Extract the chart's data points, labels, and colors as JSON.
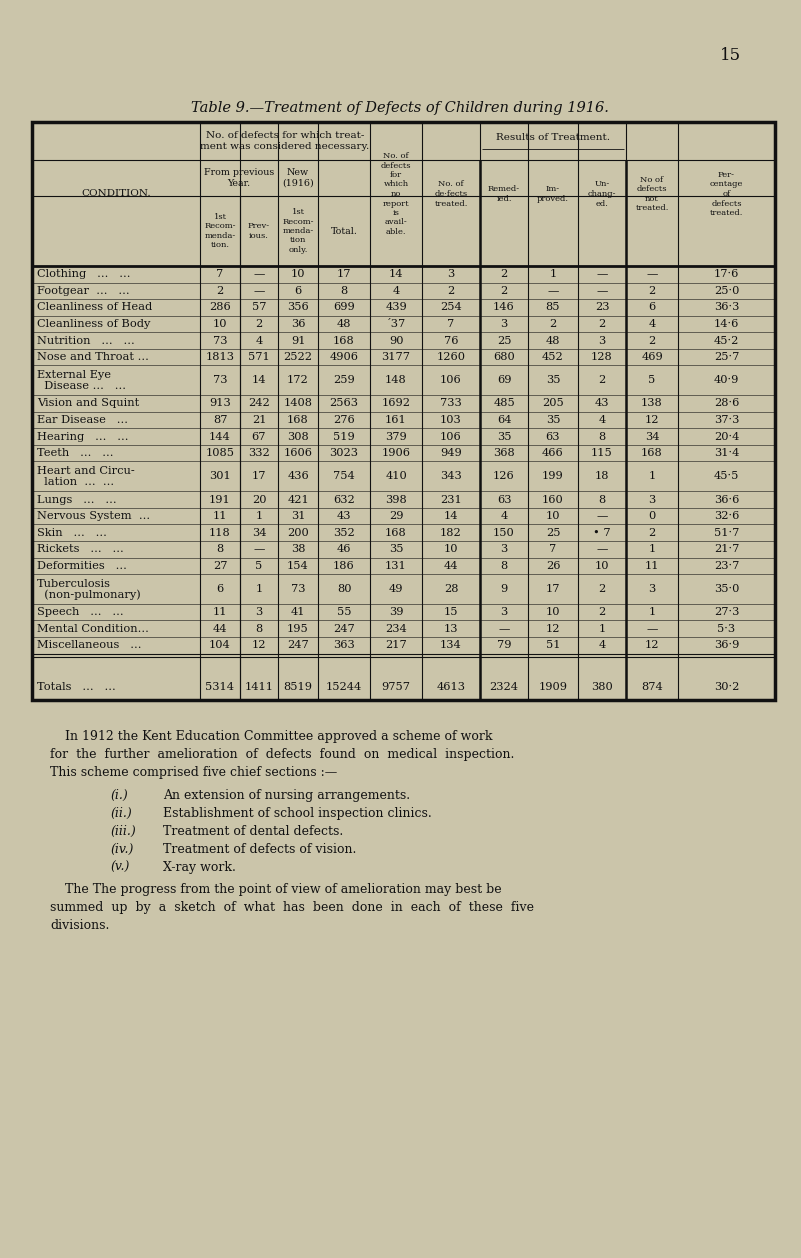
{
  "page_number": "15",
  "title": "Table 9.—Treatment of Defects of Children during 1916.",
  "bg_color": "#cbc5aa",
  "conditions": [
    [
      "Clothing   ...   ...",
      false
    ],
    [
      "Footgear  ...   ...",
      false
    ],
    [
      "Cleanliness of Head",
      false
    ],
    [
      "Cleanliness of Body",
      false
    ],
    [
      "Nutrition   ...   ...",
      false
    ],
    [
      "Nose and Throat ...",
      false
    ],
    [
      "External Eye",
      true
    ],
    [
      "Vision and Squint",
      false
    ],
    [
      "Ear Disease   ...",
      false
    ],
    [
      "Hearing   ...   ...",
      false
    ],
    [
      "Teeth   ...   ...",
      false
    ],
    [
      "Heart and Circu-",
      true
    ],
    [
      "Lungs   ...   ...",
      false
    ],
    [
      "Nervous System  ...",
      false
    ],
    [
      "Skin   ...   ...",
      false
    ],
    [
      "Rickets   ...   ...",
      false
    ],
    [
      "Deformities   ...",
      false
    ],
    [
      "Tuberculosis",
      true
    ],
    [
      "Speech   ...   ...",
      false
    ],
    [
      "Mental Condition...",
      false
    ],
    [
      "Miscellaneous   ...",
      false
    ],
    [
      "Totals   ...   ...",
      false
    ]
  ],
  "condition_line2": [
    "",
    "",
    "",
    "",
    "",
    "",
    "  Disease ...   ...",
    "",
    "",
    "",
    "",
    "  lation  ...  ...",
    "",
    "",
    "",
    "",
    "",
    "  (non-pulmonary)",
    "",
    "",
    "",
    ""
  ],
  "data": [
    [
      "7",
      "—",
      "10",
      "17",
      "14",
      "3",
      "2",
      "1",
      "—",
      "—",
      "17·6"
    ],
    [
      "2",
      "—",
      "6",
      "8",
      "4",
      "2",
      "2",
      "—",
      "—",
      "2",
      "25·0"
    ],
    [
      "286",
      "57",
      "356",
      "699",
      "439",
      "254",
      "146",
      "85",
      "23",
      "6",
      "36·3"
    ],
    [
      "10",
      "2",
      "36",
      "48",
      "´37",
      "7",
      "3",
      "2",
      "2",
      "4",
      "14·6"
    ],
    [
      "73",
      "4",
      "91",
      "168",
      "90",
      "76",
      "25",
      "48",
      "3",
      "2",
      "45·2"
    ],
    [
      "1813",
      "571",
      "2522",
      "4906",
      "3177",
      "1260",
      "680",
      "452",
      "128",
      "469",
      "25·7"
    ],
    [
      "73",
      "14",
      "172",
      "259",
      "148",
      "106",
      "69",
      "35",
      "2",
      "5",
      "40·9"
    ],
    [
      "913",
      "242",
      "1408",
      "2563",
      "1692",
      "733",
      "485",
      "205",
      "43",
      "138",
      "28·6"
    ],
    [
      "87",
      "21",
      "168",
      "276",
      "161",
      "103",
      "64",
      "35",
      "4",
      "12",
      "37·3"
    ],
    [
      "144",
      "67",
      "308",
      "519",
      "379",
      "106",
      "35",
      "63",
      "8",
      "34",
      "20·4"
    ],
    [
      "1085",
      "332",
      "1606",
      "3023",
      "1906",
      "949",
      "368",
      "466",
      "115",
      "168",
      "31·4"
    ],
    [
      "301",
      "17",
      "436",
      "754",
      "410",
      "343",
      "126",
      "199",
      "18",
      "1",
      "45·5"
    ],
    [
      "191",
      "20",
      "421",
      "632",
      "398",
      "231",
      "63",
      "160",
      "8",
      "3",
      "36·6"
    ],
    [
      "11",
      "1",
      "31",
      "43",
      "29",
      "14",
      "4",
      "10",
      "—",
      "0",
      "32·6"
    ],
    [
      "118",
      "34",
      "200",
      "352",
      "168",
      "182",
      "150",
      "25",
      "• 7",
      "2",
      "51·7"
    ],
    [
      "8",
      "—",
      "38",
      "46",
      "35",
      "10",
      "3",
      "7",
      "—",
      "1",
      "21·7"
    ],
    [
      "27",
      "5",
      "154",
      "186",
      "131",
      "44",
      "8",
      "26",
      "10",
      "11",
      "23·7"
    ],
    [
      "6",
      "1",
      "73",
      "80",
      "49",
      "28",
      "9",
      "17",
      "2",
      "3",
      "35·0"
    ],
    [
      "11",
      "3",
      "41",
      "55",
      "39",
      "15",
      "3",
      "10",
      "2",
      "1",
      "27·3"
    ],
    [
      "44",
      "8",
      "195",
      "247",
      "234",
      "13",
      "—",
      "12",
      "1",
      "—",
      "5·3"
    ],
    [
      "104",
      "12",
      "247",
      "363",
      "217",
      "134",
      "79",
      "51",
      "4",
      "12",
      "36·9"
    ],
    [
      "5314",
      "1411",
      "8519",
      "15244",
      "9757",
      "4613",
      "2324",
      "1909",
      "380",
      "874",
      "30·2"
    ]
  ],
  "footer_para1": [
    "In 1912 the Kent Education Committee approved a scheme of work",
    "for  the  further  amelioration  of  defects  found  on  medical  inspection.",
    "This scheme comprised five chief sections :—"
  ],
  "footer_list": [
    [
      "(i.)",
      "An extension of nursing arrangements."
    ],
    [
      "(ii.)",
      "Establishment of school inspection clinics."
    ],
    [
      "(iii.)",
      "Treatment of dental defects."
    ],
    [
      "(iv.)",
      "Treatment of defects of vision."
    ],
    [
      "(v.)",
      "X-ray work."
    ]
  ],
  "footer_para2": [
    "The progress from the point of view of amelioration may best be",
    "summed  up  by  a  sketch  of  what  has  been  done  in  each  of  these  five",
    "divisions."
  ]
}
